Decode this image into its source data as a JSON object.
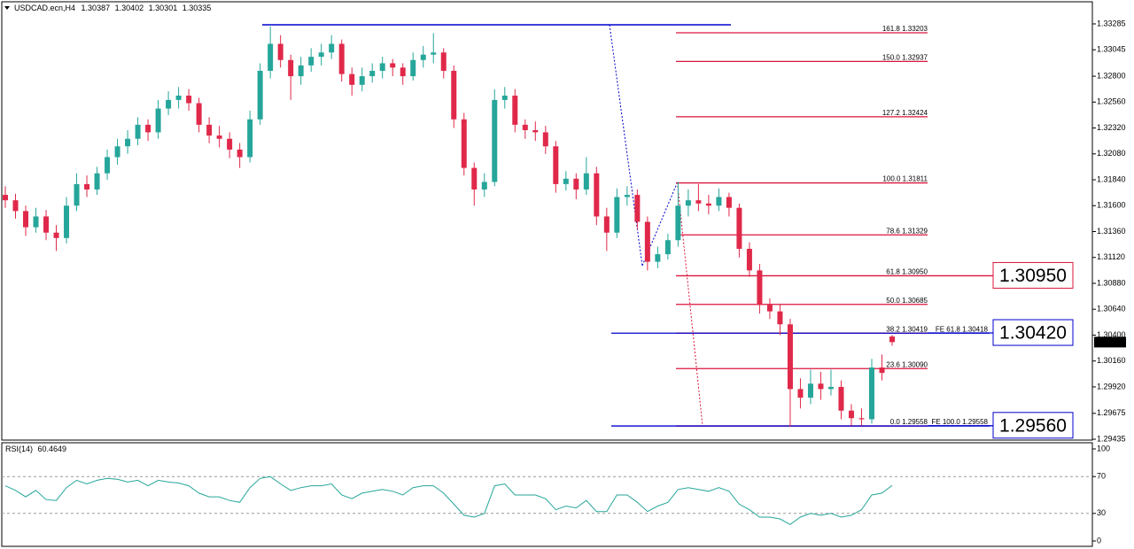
{
  "chart_data": {
    "type": "candlestick",
    "symbol": "USDCAD.ecn,H4",
    "up_color": "#26a69a",
    "down_color": "#e0294a",
    "ylim": [
      1.29427,
      1.3349
    ],
    "yticks": [
      1.33285,
      1.33045,
      {
        "value": 1.328,
        "label": "1.32800"
      },
      {
        "value": 1.3256,
        "label": "1.32560"
      },
      {
        "value": 1.3232,
        "label": "1.32320"
      },
      {
        "value": 1.3208,
        "label": "1.32080"
      },
      {
        "value": 1.3184,
        "label": "1.31840"
      },
      {
        "value": 1.316,
        "label": "1.31600"
      },
      {
        "value": 1.3136,
        "label": "1.31360"
      },
      {
        "value": 1.3112,
        "label": "1.31120"
      },
      {
        "value": 1.3088,
        "label": "1.30880"
      },
      {
        "value": 1.3064,
        "label": "1.30640"
      },
      {
        "value": 1.304,
        "label": "1.30400"
      },
      {
        "value": 1.3016,
        "label": "1.30160"
      },
      {
        "value": 1.2992,
        "label": "1.29920"
      },
      1.29675,
      1.29435
    ],
    "candles": [
      [
        1.317,
        1.3178,
        1.3158,
        1.3165
      ],
      [
        1.3165,
        1.3171,
        1.3148,
        1.3155
      ],
      [
        1.3155,
        1.316,
        1.3132,
        1.314
      ],
      [
        1.314,
        1.3158,
        1.3135,
        1.315
      ],
      [
        1.315,
        1.3156,
        1.3128,
        1.3135
      ],
      [
        1.3135,
        1.3142,
        1.3118,
        1.313
      ],
      [
        1.313,
        1.3168,
        1.3125,
        1.316
      ],
      [
        1.316,
        1.319,
        1.3155,
        1.318
      ],
      [
        1.318,
        1.3188,
        1.3168,
        1.3175
      ],
      [
        1.3175,
        1.3196,
        1.317,
        1.319
      ],
      [
        1.319,
        1.3212,
        1.3184,
        1.3205
      ],
      [
        1.3205,
        1.3222,
        1.3198,
        1.3215
      ],
      [
        1.3215,
        1.323,
        1.3208,
        1.3222
      ],
      [
        1.3222,
        1.3242,
        1.3216,
        1.3235
      ],
      [
        1.3235,
        1.324,
        1.322,
        1.3228
      ],
      [
        1.3228,
        1.3258,
        1.3222,
        1.325
      ],
      [
        1.325,
        1.3266,
        1.3244,
        1.3258
      ],
      [
        1.3258,
        1.327,
        1.325,
        1.3262
      ],
      [
        1.3262,
        1.3268,
        1.3248,
        1.3255
      ],
      [
        1.3255,
        1.326,
        1.3228,
        1.3235
      ],
      [
        1.3235,
        1.3242,
        1.3218,
        1.3225
      ],
      [
        1.3225,
        1.3234,
        1.3214,
        1.3222
      ],
      [
        1.3222,
        1.3228,
        1.3204,
        1.3212
      ],
      [
        1.3212,
        1.3218,
        1.3195,
        1.3205
      ],
      [
        1.3205,
        1.3248,
        1.32,
        1.324
      ],
      [
        1.324,
        1.3292,
        1.3235,
        1.3285
      ],
      [
        1.3285,
        1.3326,
        1.3278,
        1.331
      ],
      [
        1.331,
        1.3318,
        1.3288,
        1.3295
      ],
      [
        1.3295,
        1.33,
        1.3258,
        1.328
      ],
      [
        1.328,
        1.3298,
        1.3272,
        1.329
      ],
      [
        1.329,
        1.3306,
        1.3284,
        1.3298
      ],
      [
        1.3298,
        1.331,
        1.329,
        1.3302
      ],
      [
        1.3302,
        1.3318,
        1.3296,
        1.331
      ],
      [
        1.331,
        1.3314,
        1.3275,
        1.3282
      ],
      [
        1.3282,
        1.3288,
        1.3262,
        1.3272
      ],
      [
        1.3272,
        1.3288,
        1.3266,
        1.328
      ],
      [
        1.328,
        1.3292,
        1.3274,
        1.3285
      ],
      [
        1.3285,
        1.3298,
        1.3278,
        1.3292
      ],
      [
        1.3292,
        1.3296,
        1.328,
        1.3288
      ],
      [
        1.3288,
        1.3292,
        1.3272,
        1.328
      ],
      [
        1.328,
        1.3302,
        1.3276,
        1.3295
      ],
      [
        1.3295,
        1.3308,
        1.3288,
        1.33
      ],
      [
        1.33,
        1.332,
        1.3292,
        1.3302
      ],
      [
        1.3302,
        1.3306,
        1.3278,
        1.3285
      ],
      [
        1.3285,
        1.329,
        1.3232,
        1.324
      ],
      [
        1.324,
        1.3246,
        1.3188,
        1.3195
      ],
      [
        1.3195,
        1.32,
        1.316,
        1.3175
      ],
      [
        1.3175,
        1.319,
        1.3168,
        1.3182
      ],
      [
        1.3182,
        1.3268,
        1.3178,
        1.3258
      ],
      [
        1.3258,
        1.327,
        1.325,
        1.3262
      ],
      [
        1.3262,
        1.3268,
        1.3228,
        1.3235
      ],
      [
        1.3235,
        1.324,
        1.3222,
        1.323
      ],
      [
        1.323,
        1.3238,
        1.322,
        1.3228
      ],
      [
        1.3228,
        1.3234,
        1.3208,
        1.3215
      ],
      [
        1.3215,
        1.322,
        1.3172,
        1.318
      ],
      [
        1.318,
        1.3192,
        1.3174,
        1.3185
      ],
      [
        1.3185,
        1.319,
        1.3166,
        1.3175
      ],
      [
        1.3175,
        1.3205,
        1.317,
        1.319
      ],
      [
        1.319,
        1.3196,
        1.3142,
        1.315
      ],
      [
        1.315,
        1.3158,
        1.3118,
        1.3135
      ],
      [
        1.3135,
        1.3176,
        1.313,
        1.3168
      ],
      [
        1.3168,
        1.3178,
        1.316,
        1.317
      ],
      [
        1.317,
        1.3175,
        1.3138,
        1.3145
      ],
      [
        1.3145,
        1.315,
        1.31,
        1.3108
      ],
      [
        1.3108,
        1.3122,
        1.3102,
        1.3115
      ],
      [
        1.3115,
        1.3134,
        1.311,
        1.3128
      ],
      [
        1.3128,
        1.3182,
        1.3122,
        1.316
      ],
      [
        1.316,
        1.3175,
        1.315,
        1.3165
      ],
      [
        1.3165,
        1.318,
        1.3155,
        1.3162
      ],
      [
        1.3162,
        1.317,
        1.3152,
        1.316
      ],
      [
        1.316,
        1.3176,
        1.3155,
        1.3168
      ],
      [
        1.3168,
        1.3172,
        1.315,
        1.3158
      ],
      [
        1.3158,
        1.3162,
        1.3112,
        1.312
      ],
      [
        1.312,
        1.3126,
        1.3094,
        1.31
      ],
      [
        1.31,
        1.3106,
        1.306,
        1.3068
      ],
      [
        1.3068,
        1.3074,
        1.3055,
        1.3062
      ],
      [
        1.3062,
        1.3068,
        1.304,
        1.305
      ],
      [
        1.305,
        1.3055,
        1.2955,
        1.299
      ],
      [
        1.299,
        1.3,
        1.2972,
        1.2982
      ],
      [
        1.2982,
        1.3008,
        1.2976,
        1.2995
      ],
      [
        1.2995,
        1.3006,
        1.298,
        1.299
      ],
      [
        1.299,
        1.3008,
        1.2984,
        1.2992
      ],
      [
        1.2992,
        1.2998,
        1.2962,
        1.297
      ],
      [
        1.297,
        1.2976,
        1.2956,
        1.2963
      ],
      [
        1.2963,
        1.2972,
        1.2956,
        1.2962
      ],
      [
        1.2962,
        1.3018,
        1.2958,
        1.301
      ],
      [
        1.301,
        1.3022,
        1.2998,
        1.3005
      ],
      [
        1.30387,
        1.30402,
        1.30301,
        1.30335
      ]
    ],
    "fibonacci": {
      "color": "#dc143c",
      "levels": [
        {
          "label": "161.8  1.33203",
          "value": 1.33203
        },
        {
          "label": "150.0  1.32937",
          "value": 1.32937
        },
        {
          "label": "127.2  1.32424",
          "value": 1.32424
        },
        {
          "label": "100.0  1.31811",
          "value": 1.31811
        },
        {
          "label": "78.6  1.31329",
          "value": 1.31329
        },
        {
          "label": "61.8  1.30950",
          "value": 1.3095
        },
        {
          "label": "50.0  1.30685",
          "value": 1.30685
        },
        {
          "label": "38.2  1.30419",
          "value": 1.30419
        },
        {
          "label": "23.6  1.30090",
          "value": 1.3009
        },
        {
          "label": "0.0  1.29558",
          "value": 1.29558
        }
      ]
    },
    "expansion": {
      "color": "#0000cd",
      "levels": [
        {
          "label": "FE 61.8  1.30418",
          "value": 1.30418
        },
        {
          "label": "FE 100.0  1.29558",
          "value": 1.29558
        }
      ]
    },
    "price_labels": [
      {
        "value": 1.3095,
        "label": "1.30950",
        "color": "#dc143c"
      },
      {
        "value": 1.3042,
        "label": "1.30420",
        "color": "#0000cd"
      },
      {
        "value": 1.2956,
        "label": "1.29560",
        "color": "#0000cd"
      }
    ],
    "rsi": {
      "title": "RSI(14)",
      "color": "#26a69a",
      "ylim": [
        0,
        100
      ],
      "yticks": [
        0,
        30,
        70,
        100
      ],
      "levels": [
        30,
        70
      ],
      "values": [
        60,
        55,
        48,
        55,
        45,
        44,
        58,
        66,
        62,
        66,
        68,
        67,
        64,
        66,
        60,
        66,
        64,
        63,
        60,
        52,
        48,
        48,
        44,
        42,
        58,
        68,
        70,
        62,
        55,
        58,
        60,
        60,
        62,
        50,
        46,
        52,
        54,
        56,
        54,
        50,
        58,
        60,
        60,
        52,
        40,
        28,
        26,
        30,
        60,
        62,
        50,
        50,
        50,
        46,
        34,
        38,
        36,
        44,
        32,
        32,
        50,
        50,
        42,
        32,
        38,
        42,
        56,
        58,
        56,
        54,
        58,
        54,
        40,
        34,
        26,
        26,
        24,
        18,
        26,
        30,
        28,
        30,
        26,
        28,
        34,
        50,
        52,
        60.4649
      ]
    }
  }
}
